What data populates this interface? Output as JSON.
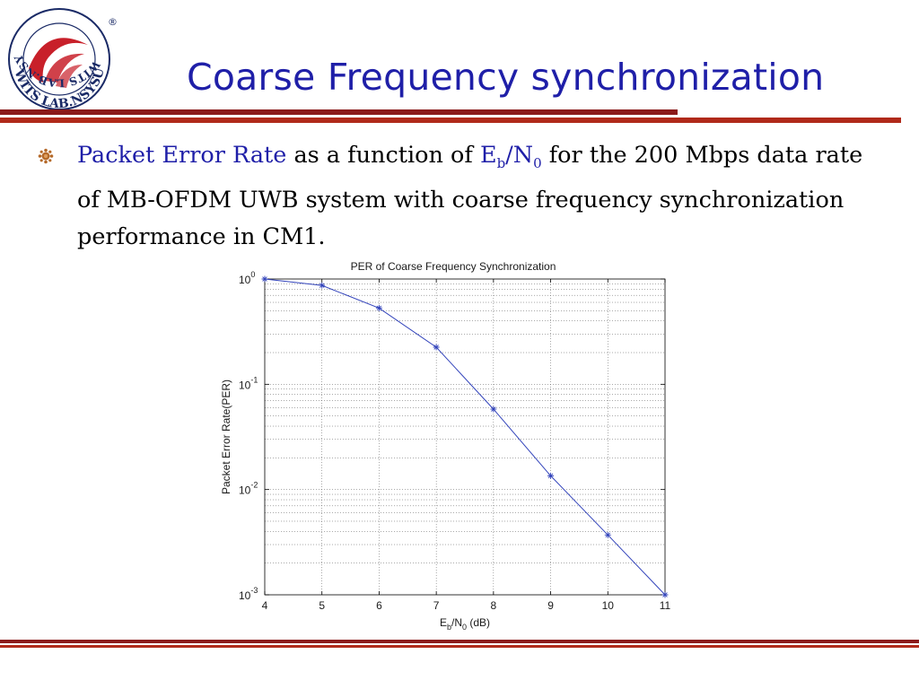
{
  "slide": {
    "title": "Coarse Frequency synchronization",
    "logo": {
      "icon": "wits-lab-seal-icon",
      "text": "WITS LAB.NSYSU",
      "mark": "®"
    },
    "bullet": {
      "icon": "bullet-mark-icon",
      "highlight": "Packet Error Rate",
      "text_before": " as a function of  ",
      "eb": "E",
      "eb_sub": "b",
      "slash": "/",
      "n0": "N",
      "n0_sub": "0",
      "text_after": " for the 200 Mbps data rate of MB-OFDM UWB system with coarse frequency synchronization performance in CM1.",
      "highlight_color": "#1f1fa8"
    }
  },
  "chart_data": {
    "type": "line",
    "title": "PER of Coarse Frequency Synchronization",
    "xlabel": "E_b/N_0 (dB)",
    "xlabel_parts": {
      "base1": "E",
      "sub1": "b",
      "slash": "/N",
      "sub2": "0",
      "tail": " (dB)"
    },
    "ylabel": "Packet Error Rate(PER)",
    "x": [
      4,
      5,
      6,
      7,
      8,
      9,
      10,
      11
    ],
    "y": [
      1.0,
      0.87,
      0.53,
      0.225,
      0.058,
      0.0135,
      0.0037,
      0.001
    ],
    "xlim": [
      4,
      11
    ],
    "ylim": [
      0.001,
      1
    ],
    "yscale": "log",
    "grid": true,
    "marker": "*",
    "line_color": "#3344bb",
    "xticks": [
      "4",
      "5",
      "6",
      "7",
      "8",
      "9",
      "10",
      "11"
    ],
    "yticks": [
      {
        "base": "10",
        "exp": "0"
      },
      {
        "base": "10",
        "exp": "-1"
      },
      {
        "base": "10",
        "exp": "-2"
      },
      {
        "base": "10",
        "exp": "-3"
      }
    ]
  }
}
